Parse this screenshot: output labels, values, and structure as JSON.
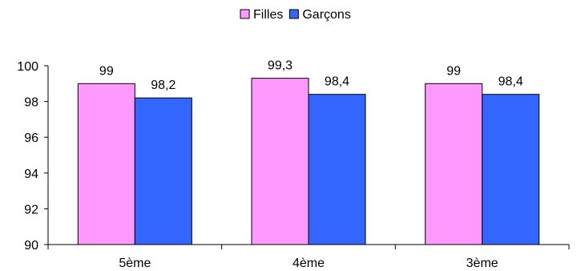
{
  "chart_data": {
    "type": "bar",
    "categories": [
      "5ème",
      "4ème",
      "3ème"
    ],
    "series": [
      {
        "name": "Filles",
        "values": [
          99,
          99.3,
          99
        ],
        "labels": [
          "99",
          "99,3",
          "99"
        ],
        "color": "#FF99FF"
      },
      {
        "name": "Garçons",
        "values": [
          98.2,
          98.4,
          98.4
        ],
        "labels": [
          "98,2",
          "98,4",
          "98,4"
        ],
        "color": "#3366FF"
      }
    ],
    "ylim": [
      90,
      100
    ],
    "yticks": [
      90,
      92,
      94,
      96,
      98,
      100
    ],
    "ytick_labels": [
      "90",
      "92",
      "94",
      "96",
      "98",
      "100"
    ],
    "title": "",
    "xlabel": "",
    "ylabel": "",
    "grid": false,
    "legend": "top-center",
    "data_labels": true
  }
}
